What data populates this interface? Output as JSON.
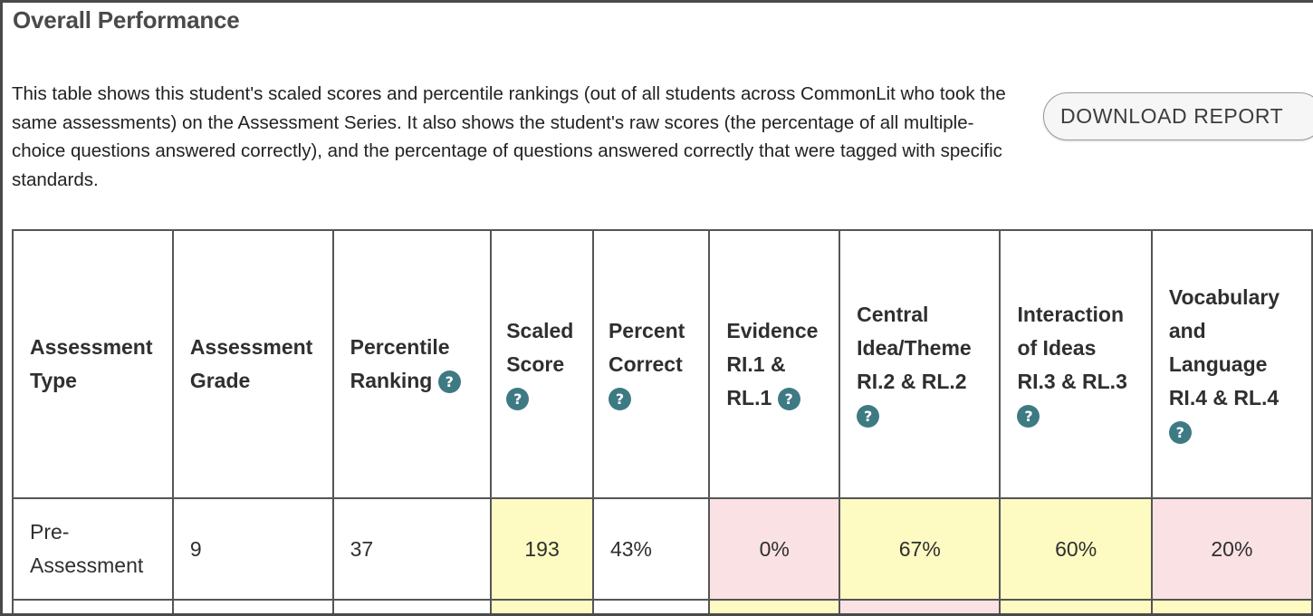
{
  "section": {
    "title": "Overall Performance",
    "description": "This table shows this student's scaled scores and percentile rankings (out of all students across CommonLit who took the same assessments) on the Assessment Series. It also shows the student's raw scores (the percentage of all multiple-choice questions answered correctly), and the percentage of questions answered correctly that were tagged with specific standards.",
    "download_label": "DOWNLOAD REPORT"
  },
  "table": {
    "headers": [
      {
        "label": "Assessment Type",
        "help": false
      },
      {
        "label": "Assessment Grade",
        "help": false
      },
      {
        "label": "Percentile Ranking",
        "help": true
      },
      {
        "label": "Scaled Score",
        "help": true
      },
      {
        "label": "Percent Correct",
        "help": true
      },
      {
        "label": "Evidence RI.1 & RL.1",
        "help": true
      },
      {
        "label": "Central Idea/Theme RI.2 & RL.2",
        "help": true
      },
      {
        "label": "Interaction of Ideas RI.3 & RL.3",
        "help": true
      },
      {
        "label": "Vocabulary and Language RI.4 & RL.4",
        "help": true
      }
    ],
    "help_glyph": "?",
    "rows": [
      {
        "cells": [
          "Pre-Assessment",
          "9",
          "37",
          "193",
          "43%",
          "0%",
          "67%",
          "60%",
          "20%"
        ]
      }
    ]
  },
  "colors": {
    "help_icon": "#3e7a83",
    "cell_yellow": "#fdfbc2",
    "cell_pink": "#f9e1e4",
    "border": "#555555"
  },
  "icons": {
    "help": "question-circle-icon"
  }
}
